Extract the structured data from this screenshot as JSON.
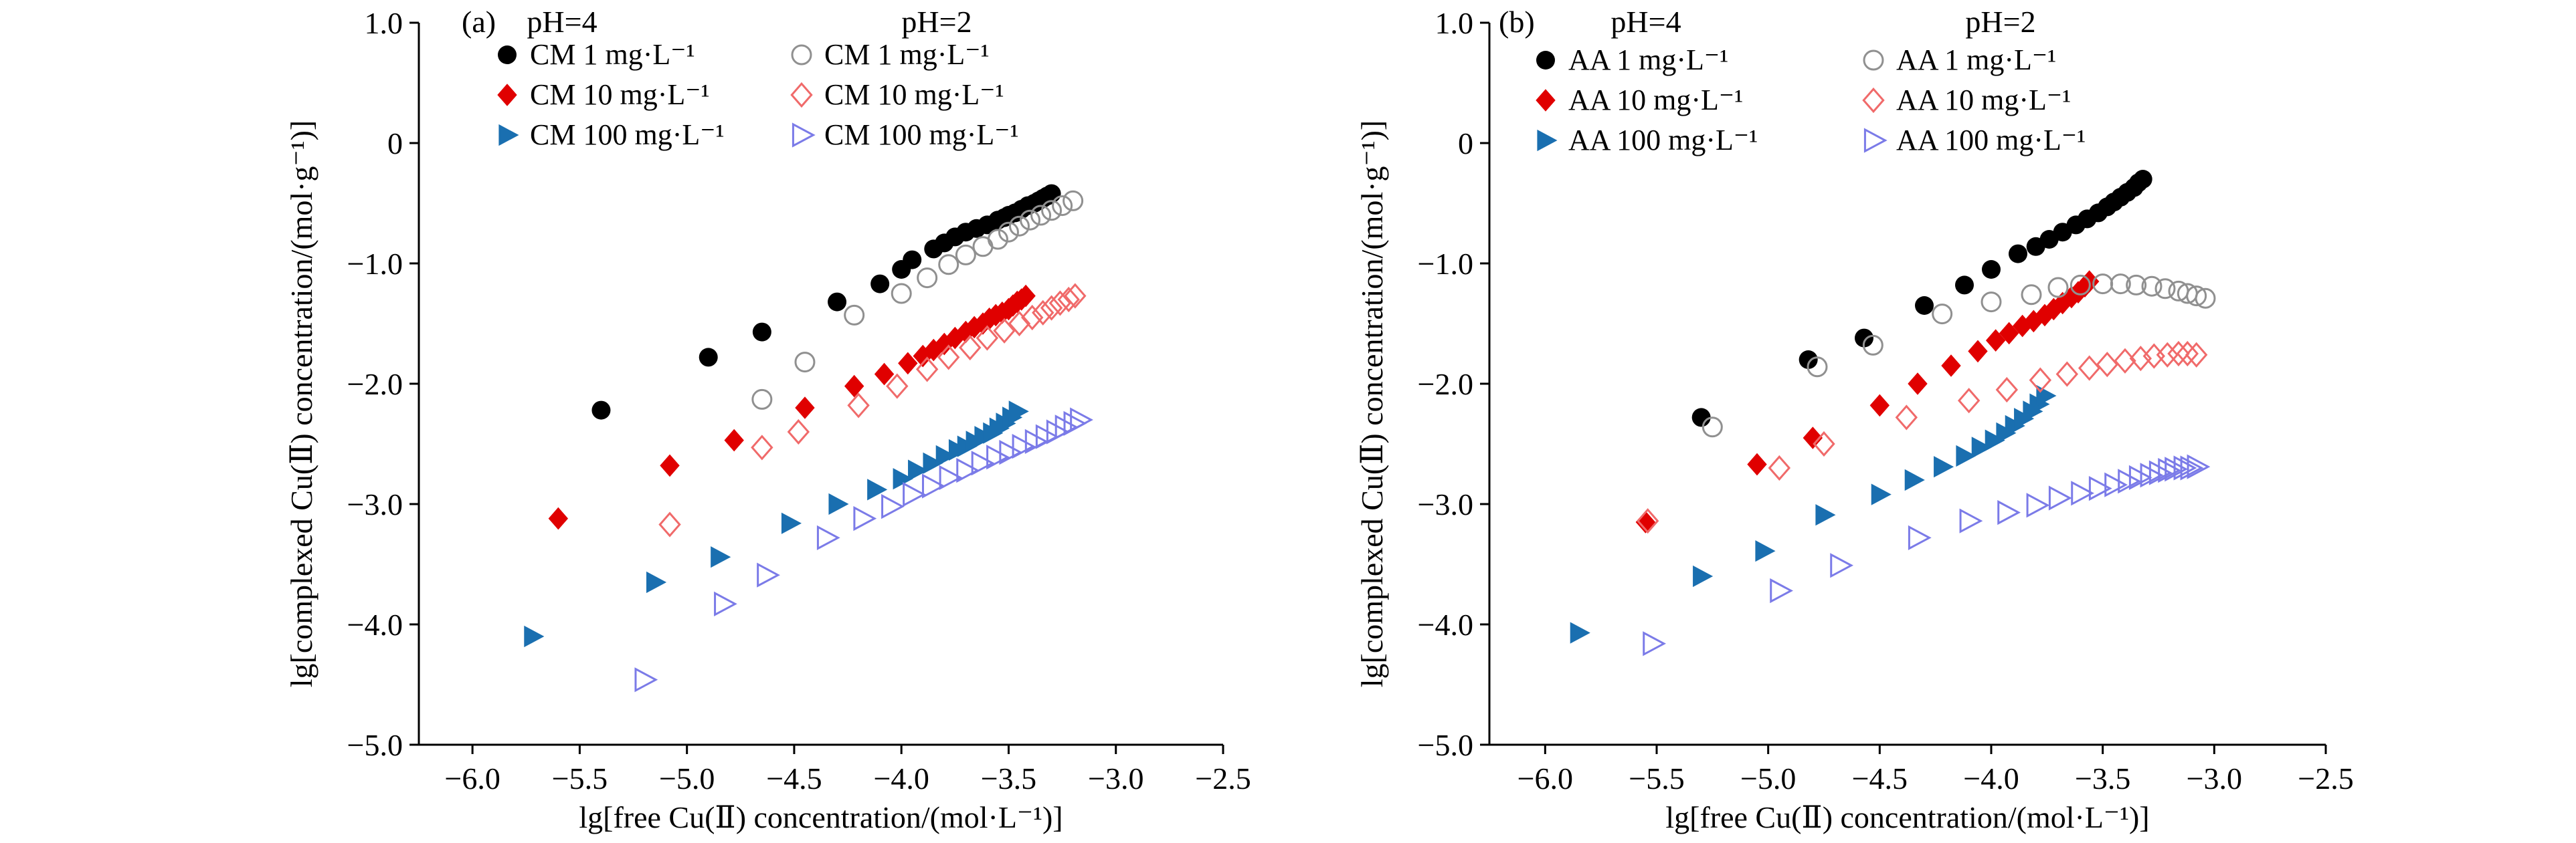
{
  "chart_data": [
    {
      "type": "scatter",
      "panel_label": "(a)",
      "xlabel": "lg[free Cu(Ⅱ) concentration/(mol·L⁻¹)]",
      "ylabel": "lg[complexed Cu(Ⅱ) concentration/(mol·g⁻¹)]",
      "xlim": [
        -6.25,
        -2.5
      ],
      "ylim": [
        -5.0,
        1.0
      ],
      "xticks": [
        -6.0,
        -5.5,
        -5.0,
        -4.5,
        -4.0,
        -3.5,
        -3.0,
        -2.5
      ],
      "xtick_labels": [
        "−6.0",
        "−5.5",
        "−5.0",
        "−4.5",
        "−4.0",
        "−3.5",
        "−3.0",
        "−2.5"
      ],
      "yticks": [
        1.0,
        0,
        -1.0,
        -2.0,
        -3.0,
        -4.0,
        -5.0
      ],
      "ytick_labels": [
        "1.0",
        "0",
        "−1.0",
        "−2.0",
        "−3.0",
        "−4.0",
        "−5.0"
      ],
      "group_headers": [
        "pH=4",
        "pH=2"
      ],
      "series": [
        {
          "name": "CM 1 mg·L⁻¹",
          "color": "#000000",
          "marker": "circle",
          "filled": true,
          "x": [
            -5.4,
            -4.9,
            -4.65,
            -4.3,
            -4.1,
            -4.0,
            -3.95,
            -3.85,
            -3.8,
            -3.75,
            -3.7,
            -3.65,
            -3.6,
            -3.55,
            -3.52,
            -3.5,
            -3.47,
            -3.44,
            -3.41,
            -3.38,
            -3.36,
            -3.34,
            -3.32,
            -3.3
          ],
          "y": [
            -2.22,
            -1.78,
            -1.57,
            -1.32,
            -1.17,
            -1.05,
            -0.97,
            -0.88,
            -0.83,
            -0.78,
            -0.74,
            -0.71,
            -0.68,
            -0.64,
            -0.62,
            -0.6,
            -0.58,
            -0.55,
            -0.52,
            -0.5,
            -0.48,
            -0.46,
            -0.44,
            -0.42
          ]
        },
        {
          "name": "CM 10 mg·L⁻¹",
          "color": "#e00000",
          "marker": "diamond",
          "filled": true,
          "x": [
            -5.6,
            -5.08,
            -4.78,
            -4.45,
            -4.22,
            -4.08,
            -3.97,
            -3.9,
            -3.85,
            -3.8,
            -3.75,
            -3.7,
            -3.66,
            -3.62,
            -3.59,
            -3.56,
            -3.53,
            -3.5,
            -3.48,
            -3.46,
            -3.44,
            -3.42
          ],
          "y": [
            -3.12,
            -2.68,
            -2.47,
            -2.2,
            -2.02,
            -1.92,
            -1.83,
            -1.77,
            -1.72,
            -1.67,
            -1.62,
            -1.57,
            -1.53,
            -1.5,
            -1.46,
            -1.43,
            -1.41,
            -1.38,
            -1.35,
            -1.32,
            -1.3,
            -1.27
          ]
        },
        {
          "name": "CM 100 mg·L⁻¹",
          "color": "#1a6fb0",
          "marker": "triangle-right",
          "filled": true,
          "x": [
            -5.72,
            -5.15,
            -4.85,
            -4.52,
            -4.3,
            -4.12,
            -4.0,
            -3.93,
            -3.86,
            -3.8,
            -3.74,
            -3.7,
            -3.66,
            -3.62,
            -3.58,
            -3.55,
            -3.52,
            -3.49,
            -3.46
          ],
          "y": [
            -4.1,
            -3.65,
            -3.44,
            -3.16,
            -3.0,
            -2.88,
            -2.79,
            -2.72,
            -2.66,
            -2.6,
            -2.55,
            -2.52,
            -2.48,
            -2.44,
            -2.41,
            -2.37,
            -2.33,
            -2.28,
            -2.23
          ]
        },
        {
          "name": "CM 1 mg·L⁻¹",
          "color": "#909090",
          "marker": "circle",
          "filled": false,
          "x": [
            -4.65,
            -4.45,
            -4.22,
            -4.0,
            -3.88,
            -3.78,
            -3.7,
            -3.62,
            -3.55,
            -3.5,
            -3.45,
            -3.4,
            -3.35,
            -3.3,
            -3.25,
            -3.2
          ],
          "y": [
            -2.13,
            -1.82,
            -1.43,
            -1.25,
            -1.12,
            -1.01,
            -0.93,
            -0.86,
            -0.8,
            -0.74,
            -0.69,
            -0.64,
            -0.6,
            -0.56,
            -0.52,
            -0.48
          ]
        },
        {
          "name": "CM 10 mg·L⁻¹",
          "color": "#f06a6a",
          "marker": "diamond",
          "filled": false,
          "x": [
            -5.08,
            -4.65,
            -4.48,
            -4.2,
            -4.02,
            -3.88,
            -3.78,
            -3.68,
            -3.6,
            -3.52,
            -3.45,
            -3.39,
            -3.34,
            -3.3,
            -3.26,
            -3.22,
            -3.19
          ],
          "y": [
            -3.17,
            -2.53,
            -2.4,
            -2.18,
            -2.02,
            -1.88,
            -1.78,
            -1.7,
            -1.62,
            -1.56,
            -1.5,
            -1.45,
            -1.41,
            -1.37,
            -1.33,
            -1.3,
            -1.27
          ]
        },
        {
          "name": "CM 100 mg·L⁻¹",
          "color": "#7b7be8",
          "marker": "triangle-right",
          "filled": false,
          "x": [
            -5.2,
            -4.83,
            -4.63,
            -4.35,
            -4.18,
            -4.05,
            -3.95,
            -3.86,
            -3.78,
            -3.7,
            -3.63,
            -3.56,
            -3.5,
            -3.44,
            -3.38,
            -3.33,
            -3.28,
            -3.24,
            -3.2,
            -3.17
          ],
          "y": [
            -4.46,
            -3.83,
            -3.59,
            -3.28,
            -3.12,
            -3.02,
            -2.92,
            -2.85,
            -2.78,
            -2.72,
            -2.66,
            -2.61,
            -2.57,
            -2.52,
            -2.48,
            -2.44,
            -2.4,
            -2.36,
            -2.33,
            -2.3
          ]
        }
      ]
    },
    {
      "type": "scatter",
      "panel_label": "(b)",
      "xlabel": "lg[free Cu(Ⅱ) concentration/(mol·L⁻¹)]",
      "ylabel": "lg[complexed Cu(Ⅱ) concentration/(mol·g⁻¹)]",
      "xlim": [
        -6.25,
        -2.5
      ],
      "ylim": [
        -5.0,
        1.0
      ],
      "xticks": [
        -6.0,
        -5.5,
        -5.0,
        -4.5,
        -4.0,
        -3.5,
        -3.0,
        -2.5
      ],
      "xtick_labels": [
        "−6.0",
        "−5.5",
        "−5.0",
        "−4.5",
        "−4.0",
        "−3.5",
        "−3.0",
        "−2.5"
      ],
      "yticks": [
        1.0,
        0,
        -1.0,
        -2.0,
        -3.0,
        -4.0,
        -5.0
      ],
      "ytick_labels": [
        "1.0",
        "0",
        "−1.0",
        "−2.0",
        "−3.0",
        "−4.0",
        "−5.0"
      ],
      "group_headers": [
        "pH=4",
        "pH=2"
      ],
      "series": [
        {
          "name": "AA 1 mg·L⁻¹",
          "color": "#000000",
          "marker": "circle",
          "filled": true,
          "x": [
            -5.3,
            -4.82,
            -4.57,
            -4.3,
            -4.12,
            -4.0,
            -3.88,
            -3.8,
            -3.74,
            -3.68,
            -3.62,
            -3.57,
            -3.52,
            -3.48,
            -3.45,
            -3.42,
            -3.39,
            -3.36,
            -3.34,
            -3.32
          ],
          "y": [
            -2.28,
            -1.8,
            -1.62,
            -1.35,
            -1.18,
            -1.05,
            -0.92,
            -0.86,
            -0.8,
            -0.74,
            -0.68,
            -0.63,
            -0.58,
            -0.53,
            -0.49,
            -0.45,
            -0.41,
            -0.37,
            -0.33,
            -0.3
          ]
        },
        {
          "name": "AA 10 mg·L⁻¹",
          "color": "#e00000",
          "marker": "diamond",
          "filled": true,
          "x": [
            -5.55,
            -5.05,
            -4.8,
            -4.5,
            -4.33,
            -4.18,
            -4.06,
            -3.98,
            -3.92,
            -3.86,
            -3.81,
            -3.76,
            -3.72,
            -3.68,
            -3.64,
            -3.61,
            -3.58,
            -3.56
          ],
          "y": [
            -3.15,
            -2.67,
            -2.45,
            -2.18,
            -2.0,
            -1.85,
            -1.73,
            -1.64,
            -1.58,
            -1.52,
            -1.48,
            -1.43,
            -1.38,
            -1.33,
            -1.28,
            -1.24,
            -1.19,
            -1.15
          ]
        },
        {
          "name": "AA 100 mg·L⁻¹",
          "color": "#1a6fb0",
          "marker": "triangle-right",
          "filled": true,
          "x": [
            -5.85,
            -5.3,
            -5.02,
            -4.75,
            -4.5,
            -4.35,
            -4.22,
            -4.12,
            -4.05,
            -3.99,
            -3.94,
            -3.9,
            -3.86,
            -3.82,
            -3.79,
            -3.76
          ],
          "y": [
            -4.07,
            -3.6,
            -3.39,
            -3.09,
            -2.92,
            -2.8,
            -2.69,
            -2.6,
            -2.53,
            -2.47,
            -2.41,
            -2.35,
            -2.29,
            -2.23,
            -2.17,
            -2.1
          ]
        },
        {
          "name": "AA 1 mg·L⁻¹",
          "color": "#909090",
          "marker": "circle",
          "filled": false,
          "x": [
            -5.25,
            -4.78,
            -4.53,
            -4.22,
            -4.0,
            -3.82,
            -3.7,
            -3.6,
            -3.5,
            -3.42,
            -3.35,
            -3.28,
            -3.22,
            -3.16,
            -3.12,
            -3.08,
            -3.04
          ],
          "y": [
            -2.36,
            -1.86,
            -1.68,
            -1.42,
            -1.32,
            -1.26,
            -1.2,
            -1.18,
            -1.17,
            -1.17,
            -1.18,
            -1.19,
            -1.21,
            -1.23,
            -1.25,
            -1.27,
            -1.29
          ]
        },
        {
          "name": "AA 10 mg·L⁻¹",
          "color": "#f06a6a",
          "marker": "diamond",
          "filled": false,
          "x": [
            -5.54,
            -4.95,
            -4.75,
            -4.38,
            -4.1,
            -3.93,
            -3.78,
            -3.66,
            -3.56,
            -3.48,
            -3.4,
            -3.33,
            -3.27,
            -3.21,
            -3.16,
            -3.12,
            -3.08
          ],
          "y": [
            -3.14,
            -2.7,
            -2.5,
            -2.28,
            -2.14,
            -2.05,
            -1.97,
            -1.92,
            -1.87,
            -1.84,
            -1.81,
            -1.79,
            -1.77,
            -1.76,
            -1.75,
            -1.75,
            -1.76
          ]
        },
        {
          "name": "AA 100 mg·L⁻¹",
          "color": "#7b7be8",
          "marker": "triangle-right",
          "filled": false,
          "x": [
            -5.52,
            -4.95,
            -4.68,
            -4.33,
            -4.1,
            -3.93,
            -3.8,
            -3.7,
            -3.6,
            -3.52,
            -3.45,
            -3.39,
            -3.34,
            -3.29,
            -3.25,
            -3.21,
            -3.18,
            -3.14,
            -3.11,
            -3.08
          ],
          "y": [
            -4.16,
            -3.72,
            -3.51,
            -3.28,
            -3.14,
            -3.07,
            -3.01,
            -2.95,
            -2.91,
            -2.87,
            -2.84,
            -2.81,
            -2.78,
            -2.76,
            -2.74,
            -2.72,
            -2.71,
            -2.7,
            -2.7,
            -2.69
          ]
        }
      ]
    }
  ]
}
